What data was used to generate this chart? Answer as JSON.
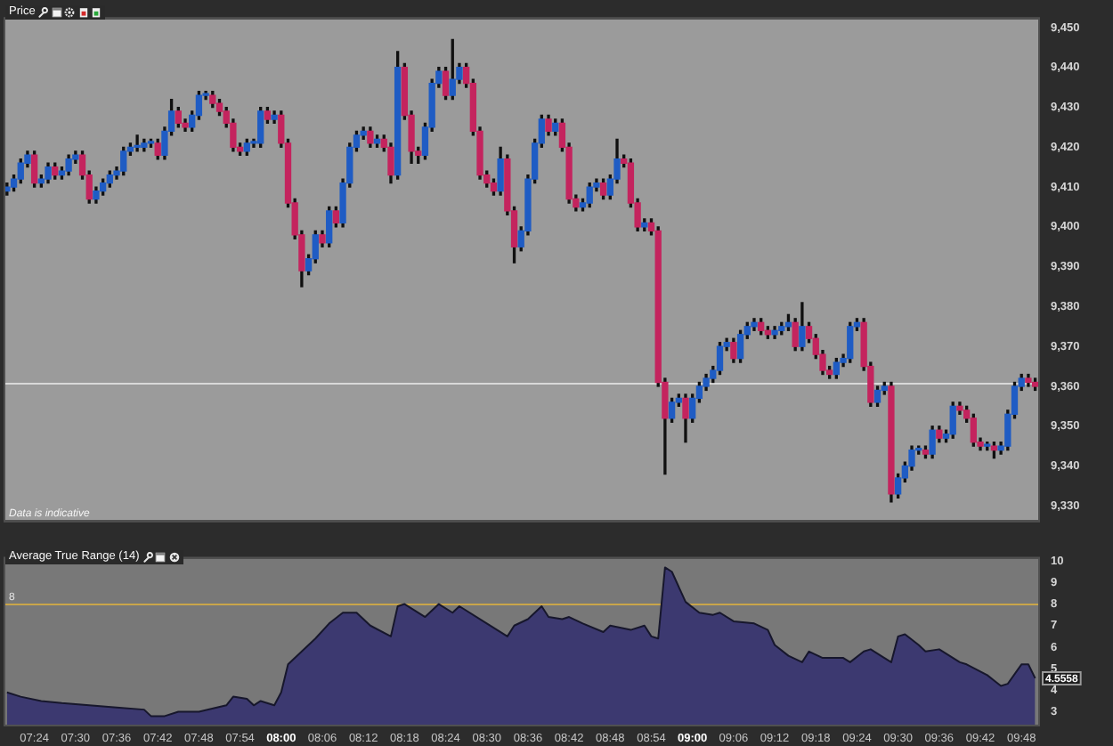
{
  "chart_data": [
    {
      "type": "candlestick",
      "title": "Price",
      "x": [
        7.3333,
        7.35,
        7.3667,
        7.3833,
        7.4,
        7.4167,
        7.4333,
        7.45,
        7.4667,
        7.4833,
        7.5,
        7.5167,
        7.5333,
        7.55,
        7.5667,
        7.5833,
        7.6,
        7.6167,
        7.6333,
        7.65,
        7.6667,
        7.6833,
        7.7,
        7.7167,
        7.7333,
        7.75,
        7.7667,
        7.7833,
        7.8,
        7.8167,
        7.8333,
        7.85,
        7.8667,
        7.8833,
        7.9,
        7.9167,
        7.9333,
        7.95,
        7.9667,
        7.9833,
        8,
        8.0167,
        8.0333,
        8.05,
        8.0667,
        8.0833,
        8.1,
        8.1167,
        8.1333,
        8.15,
        8.1667,
        8.1833,
        8.2,
        8.2167,
        8.2333,
        8.25,
        8.2667,
        8.2833,
        8.3,
        8.3167,
        8.3333,
        8.35,
        8.3667,
        8.3833,
        8.4,
        8.4167,
        8.4333,
        8.45,
        8.4667,
        8.4833,
        8.5,
        8.5167,
        8.5333,
        8.55,
        8.5667,
        8.5833,
        8.6,
        8.6167,
        8.6333,
        8.65,
        8.6667,
        8.6833,
        8.7,
        8.7167,
        8.7333,
        8.75,
        8.7667,
        8.7833,
        8.8,
        8.8167,
        8.8333,
        8.85,
        8.8667,
        8.8833,
        8.9,
        8.9167,
        8.9333,
        8.95,
        8.9667,
        8.9833,
        9,
        9.0167,
        9.0333,
        9.05,
        9.0667,
        9.0833,
        9.1,
        9.1167,
        9.1333,
        9.15,
        9.1667,
        9.1833,
        9.2,
        9.2167,
        9.2333,
        9.25,
        9.2667,
        9.2833,
        9.3,
        9.3167,
        9.3333,
        9.35,
        9.3667,
        9.3833,
        9.4,
        9.4167,
        9.4333,
        9.45,
        9.4667,
        9.4833,
        9.5,
        9.5167,
        9.5333,
        9.55,
        9.5667,
        9.5833,
        9.6,
        9.6167,
        9.6333,
        9.65,
        9.6667,
        9.6833,
        9.7,
        9.7167,
        9.7333,
        9.75,
        9.7667,
        9.7833,
        9.8,
        9.8167,
        9.8333
      ],
      "ohlc": [
        [
          9409,
          9411,
          9408,
          9410
        ],
        [
          9410,
          9413,
          9409,
          9412
        ],
        [
          9412,
          9417,
          9411,
          9416
        ],
        [
          9416,
          9419,
          9415,
          9418
        ],
        [
          9418,
          9419,
          9410,
          9411
        ],
        [
          9411,
          9413,
          9410,
          9412
        ],
        [
          9412,
          9416,
          9411,
          9415
        ],
        [
          9415,
          9416,
          9412,
          9413
        ],
        [
          9413,
          9415,
          9412,
          9414
        ],
        [
          9414,
          9418,
          9413,
          9417
        ],
        [
          9417,
          9419,
          9416,
          9418
        ],
        [
          9418,
          9419,
          9412,
          9413
        ],
        [
          9413,
          9414,
          9406,
          9407
        ],
        [
          9407,
          9410,
          9406,
          9409
        ],
        [
          9409,
          9412,
          9408,
          9411
        ],
        [
          9411,
          9414,
          9410,
          9413
        ],
        [
          9413,
          9415,
          9412,
          9414
        ],
        [
          9414,
          9420,
          9413,
          9419
        ],
        [
          9419,
          9421,
          9418,
          9420
        ],
        [
          9420,
          9423,
          9419,
          9420
        ],
        [
          9420,
          9422,
          9419,
          9421
        ],
        [
          9421,
          9422,
          9420,
          9421
        ],
        [
          9421,
          9422,
          9417,
          9418
        ],
        [
          9418,
          9425,
          9417,
          9424
        ],
        [
          9424,
          9432,
          9423,
          9429
        ],
        [
          9429,
          9430,
          9425,
          9426
        ],
        [
          9426,
          9427,
          9424,
          9425
        ],
        [
          9425,
          9429,
          9424,
          9428
        ],
        [
          9428,
          9434,
          9427,
          9433
        ],
        [
          9433,
          9434,
          9432,
          9433
        ],
        [
          9433,
          9434,
          9430,
          9431
        ],
        [
          9431,
          9432,
          9428,
          9429
        ],
        [
          9429,
          9430,
          9425,
          9426
        ],
        [
          9426,
          9427,
          9419,
          9420
        ],
        [
          9420,
          9421,
          9418,
          9419
        ],
        [
          9419,
          9422,
          9418,
          9421
        ],
        [
          9421,
          9422,
          9420,
          9421
        ],
        [
          9421,
          9430,
          9420,
          9429
        ],
        [
          9429,
          9430,
          9426,
          9427
        ],
        [
          9427,
          9429,
          9426,
          9428
        ],
        [
          9428,
          9429,
          9420,
          9421
        ],
        [
          9421,
          9422,
          9405,
          9406
        ],
        [
          9406,
          9407,
          9397,
          9398
        ],
        [
          9398,
          9399,
          9385,
          9389
        ],
        [
          9389,
          9393,
          9388,
          9392
        ],
        [
          9392,
          9399,
          9391,
          9398
        ],
        [
          9398,
          9399,
          9395,
          9396
        ],
        [
          9396,
          9405,
          9395,
          9404
        ],
        [
          9404,
          9405,
          9400,
          9401
        ],
        [
          9401,
          9412,
          9400,
          9411
        ],
        [
          9411,
          9421,
          9410,
          9420
        ],
        [
          9420,
          9424,
          9419,
          9423
        ],
        [
          9423,
          9425,
          9422,
          9424
        ],
        [
          9424,
          9425,
          9420,
          9421
        ],
        [
          9421,
          9423,
          9420,
          9422
        ],
        [
          9422,
          9423,
          9419,
          9420
        ],
        [
          9420,
          9421,
          9411,
          9413
        ],
        [
          9413,
          9444,
          9412,
          9440
        ],
        [
          9440,
          9441,
          9427,
          9428
        ],
        [
          9428,
          9429,
          9416,
          9419
        ],
        [
          9419,
          9420,
          9416,
          9418
        ],
        [
          9418,
          9426,
          9417,
          9425
        ],
        [
          9425,
          9437,
          9424,
          9436
        ],
        [
          9436,
          9440,
          9435,
          9439
        ],
        [
          9439,
          9440,
          9432,
          9433
        ],
        [
          9433,
          9447,
          9432,
          9437
        ],
        [
          9437,
          9441,
          9436,
          9440
        ],
        [
          9440,
          9441,
          9435,
          9436
        ],
        [
          9436,
          9437,
          9423,
          9424
        ],
        [
          9424,
          9425,
          9412,
          9413
        ],
        [
          9413,
          9414,
          9410,
          9411
        ],
        [
          9411,
          9412,
          9408,
          9409
        ],
        [
          9409,
          9420,
          9408,
          9417
        ],
        [
          9417,
          9418,
          9403,
          9404
        ],
        [
          9404,
          9405,
          9391,
          9395
        ],
        [
          9395,
          9400,
          9394,
          9399
        ],
        [
          9399,
          9413,
          9398,
          9412
        ],
        [
          9412,
          9422,
          9411,
          9421
        ],
        [
          9421,
          9428,
          9420,
          9427
        ],
        [
          9427,
          9428,
          9423,
          9424
        ],
        [
          9424,
          9427,
          9423,
          9426
        ],
        [
          9426,
          9427,
          9419,
          9420
        ],
        [
          9420,
          9421,
          9406,
          9407
        ],
        [
          9407,
          9408,
          9404,
          9405
        ],
        [
          9405,
          9407,
          9404,
          9406
        ],
        [
          9406,
          9411,
          9405,
          9410
        ],
        [
          9410,
          9412,
          9409,
          9411
        ],
        [
          9411,
          9412,
          9407,
          9408
        ],
        [
          9408,
          9413,
          9407,
          9412
        ],
        [
          9412,
          9422,
          9411,
          9417
        ],
        [
          9417,
          9418,
          9415,
          9416
        ],
        [
          9416,
          9417,
          9405,
          9406
        ],
        [
          9406,
          9407,
          9399,
          9400
        ],
        [
          9400,
          9402,
          9399,
          9401
        ],
        [
          9401,
          9402,
          9398,
          9399
        ],
        [
          9399,
          9400,
          9360,
          9361
        ],
        [
          9361,
          9362,
          9338,
          9352
        ],
        [
          9352,
          9357,
          9351,
          9356
        ],
        [
          9356,
          9358,
          9355,
          9357
        ],
        [
          9357,
          9358,
          9346,
          9352
        ],
        [
          9352,
          9358,
          9351,
          9357
        ],
        [
          9357,
          9361,
          9356,
          9360
        ],
        [
          9360,
          9363,
          9359,
          9362
        ],
        [
          9362,
          9365,
          9361,
          9364
        ],
        [
          9364,
          9371,
          9363,
          9370
        ],
        [
          9370,
          9372,
          9369,
          9371
        ],
        [
          9371,
          9372,
          9366,
          9367
        ],
        [
          9367,
          9374,
          9366,
          9373
        ],
        [
          9373,
          9376,
          9372,
          9375
        ],
        [
          9375,
          9377,
          9374,
          9376
        ],
        [
          9376,
          9377,
          9373,
          9374
        ],
        [
          9374,
          9375,
          9372,
          9373
        ],
        [
          9373,
          9375,
          9372,
          9374
        ],
        [
          9374,
          9376,
          9373,
          9375
        ],
        [
          9375,
          9378,
          9374,
          9376
        ],
        [
          9376,
          9377,
          9369,
          9370
        ],
        [
          9370,
          9381,
          9369,
          9375
        ],
        [
          9375,
          9376,
          9371,
          9372
        ],
        [
          9372,
          9373,
          9367,
          9368
        ],
        [
          9368,
          9369,
          9363,
          9364
        ],
        [
          9364,
          9365,
          9362,
          9363
        ],
        [
          9363,
          9367,
          9362,
          9366
        ],
        [
          9366,
          9368,
          9365,
          9367
        ],
        [
          9367,
          9376,
          9366,
          9375
        ],
        [
          9375,
          9377,
          9374,
          9376
        ],
        [
          9376,
          9377,
          9364,
          9365
        ],
        [
          9365,
          9366,
          9355,
          9356
        ],
        [
          9356,
          9360,
          9355,
          9359
        ],
        [
          9359,
          9361,
          9358,
          9360
        ],
        [
          9360,
          9361,
          9331,
          9333
        ],
        [
          9333,
          9338,
          9332,
          9337
        ],
        [
          9337,
          9341,
          9336,
          9340
        ],
        [
          9340,
          9345,
          9339,
          9344
        ],
        [
          9344,
          9345,
          9343,
          9344
        ],
        [
          9344,
          9345,
          9342,
          9343
        ],
        [
          9343,
          9350,
          9342,
          9349
        ],
        [
          9349,
          9350,
          9346,
          9347
        ],
        [
          9347,
          9349,
          9346,
          9348
        ],
        [
          9348,
          9356,
          9347,
          9355
        ],
        [
          9355,
          9356,
          9353,
          9354
        ],
        [
          9354,
          9355,
          9351,
          9352
        ],
        [
          9352,
          9353,
          9345,
          9346
        ],
        [
          9346,
          9347,
          9344,
          9345
        ],
        [
          9345,
          9346,
          9344,
          9345
        ],
        [
          9345,
          9346,
          9342,
          9344
        ],
        [
          9344,
          9346,
          9343,
          9345
        ],
        [
          9345,
          9354,
          9344,
          9353
        ],
        [
          9353,
          9361,
          9352,
          9360
        ],
        [
          9360,
          9363,
          9359,
          9362
        ],
        [
          9362,
          9363,
          9360,
          9361
        ],
        [
          9361,
          9362,
          9359,
          9360
        ]
      ],
      "xlim": [
        7.325,
        9.845
      ],
      "ylim": [
        9326,
        9452.5
      ],
      "yticks": [
        {
          "value": 9330,
          "label": "9,330"
        },
        {
          "value": 9340,
          "label": "9,340"
        },
        {
          "value": 9350,
          "label": "9,350"
        },
        {
          "value": 9360,
          "label": "9,360"
        },
        {
          "value": 9370,
          "label": "9,370"
        },
        {
          "value": 9380,
          "label": "9,380"
        },
        {
          "value": 9390,
          "label": "9,390"
        },
        {
          "value": 9400,
          "label": "9,400"
        },
        {
          "value": 9410,
          "label": "9,410"
        },
        {
          "value": 9420,
          "label": "9,420"
        },
        {
          "value": 9430,
          "label": "9,430"
        },
        {
          "value": 9440,
          "label": "9,440"
        },
        {
          "value": 9450,
          "label": "9,450"
        }
      ],
      "tick_labels": "y",
      "ref_lines": [
        {
          "axis": "y",
          "value": 9361,
          "color": "#d9d9d9"
        }
      ],
      "annotations": [
        "Data is indicative"
      ]
    },
    {
      "type": "area",
      "title": "Average True Range (14)",
      "color": "#3c3970",
      "x": [
        7.3333,
        7.3667,
        7.4167,
        7.4667,
        7.5333,
        7.6,
        7.6667,
        7.6833,
        7.7167,
        7.75,
        7.8,
        7.8667,
        7.8833,
        7.9167,
        7.9333,
        7.95,
        7.9833,
        8,
        8.0167,
        8.05,
        8.0833,
        8.1167,
        8.15,
        8.1833,
        8.2167,
        8.2667,
        8.2833,
        8.3,
        8.35,
        8.3833,
        8.4167,
        8.4333,
        8.5,
        8.55,
        8.5667,
        8.6,
        8.6333,
        8.65,
        8.6833,
        8.7,
        8.7333,
        8.7833,
        8.8,
        8.85,
        8.8833,
        8.9,
        8.9167,
        8.9333,
        8.95,
        8.9833,
        9.0167,
        9.05,
        9.0667,
        9.1,
        9.15,
        9.1833,
        9.2,
        9.2333,
        9.2667,
        9.2833,
        9.3167,
        9.3667,
        9.3833,
        9.4167,
        9.4333,
        9.4667,
        9.4833,
        9.5,
        9.5167,
        9.55,
        9.5667,
        9.6,
        9.65,
        9.6667,
        9.7167,
        9.75,
        9.7667,
        9.8,
        9.8167,
        9.8333
      ],
      "values": [
        3.9,
        3.7,
        3.5,
        3.4,
        3.3,
        3.2,
        3.1,
        2.8,
        2.8,
        3.0,
        3.0,
        3.3,
        3.7,
        3.6,
        3.3,
        3.5,
        3.3,
        3.9,
        5.2,
        5.8,
        6.4,
        7.1,
        7.6,
        7.6,
        7.0,
        6.5,
        7.9,
        8.0,
        7.4,
        8.0,
        7.6,
        7.9,
        7.1,
        6.5,
        7.0,
        7.3,
        7.9,
        7.4,
        7.3,
        7.4,
        7.1,
        6.7,
        7.0,
        6.8,
        7.0,
        6.5,
        6.4,
        9.7,
        9.5,
        8.1,
        7.6,
        7.5,
        7.6,
        7.2,
        7.1,
        6.8,
        6.1,
        5.6,
        5.3,
        5.8,
        5.5,
        5.5,
        5.3,
        5.8,
        5.9,
        5.5,
        5.3,
        6.5,
        6.6,
        6.1,
        5.8,
        5.9,
        5.3,
        5.2,
        4.7,
        4.2,
        4.3,
        5.2,
        5.2,
        4.5558
      ],
      "xlim": [
        7.325,
        9.845
      ],
      "xticks": [
        {
          "value": 7.4,
          "label": "07:24"
        },
        {
          "value": 7.5,
          "label": "07:30"
        },
        {
          "value": 7.6,
          "label": "07:36"
        },
        {
          "value": 7.7,
          "label": "07:42"
        },
        {
          "value": 7.8,
          "label": "07:48"
        },
        {
          "value": 7.9,
          "label": "07:54"
        },
        {
          "value": 8,
          "label": "08:00"
        },
        {
          "value": 8.1,
          "label": "08:06"
        },
        {
          "value": 8.2,
          "label": "08:12"
        },
        {
          "value": 8.3,
          "label": "08:18"
        },
        {
          "value": 8.4,
          "label": "08:24"
        },
        {
          "value": 8.5,
          "label": "08:30"
        },
        {
          "value": 8.6,
          "label": "08:36"
        },
        {
          "value": 8.7,
          "label": "08:42"
        },
        {
          "value": 8.8,
          "label": "08:48"
        },
        {
          "value": 8.9,
          "label": "08:54"
        },
        {
          "value": 9,
          "label": "09:00"
        },
        {
          "value": 9.1,
          "label": "09:06"
        },
        {
          "value": 9.2,
          "label": "09:12"
        },
        {
          "value": 9.3,
          "label": "09:18"
        },
        {
          "value": 9.4,
          "label": "09:24"
        },
        {
          "value": 9.5,
          "label": "09:30"
        },
        {
          "value": 9.6,
          "label": "09:36"
        },
        {
          "value": 9.7,
          "label": "09:42"
        },
        {
          "value": 9.8,
          "label": "09:48"
        }
      ],
      "ylim": [
        2.32,
        10.18
      ],
      "yticks": [
        3,
        4,
        5,
        6,
        7,
        8,
        9,
        10
      ],
      "ref_lines": [
        {
          "axis": "y",
          "value": 8,
          "label": "8",
          "color": "#c9a54a"
        }
      ],
      "annotations": [
        {
          "text": "4.5558",
          "x": 9.8333,
          "y": 4.5558
        }
      ]
    }
  ]
}
